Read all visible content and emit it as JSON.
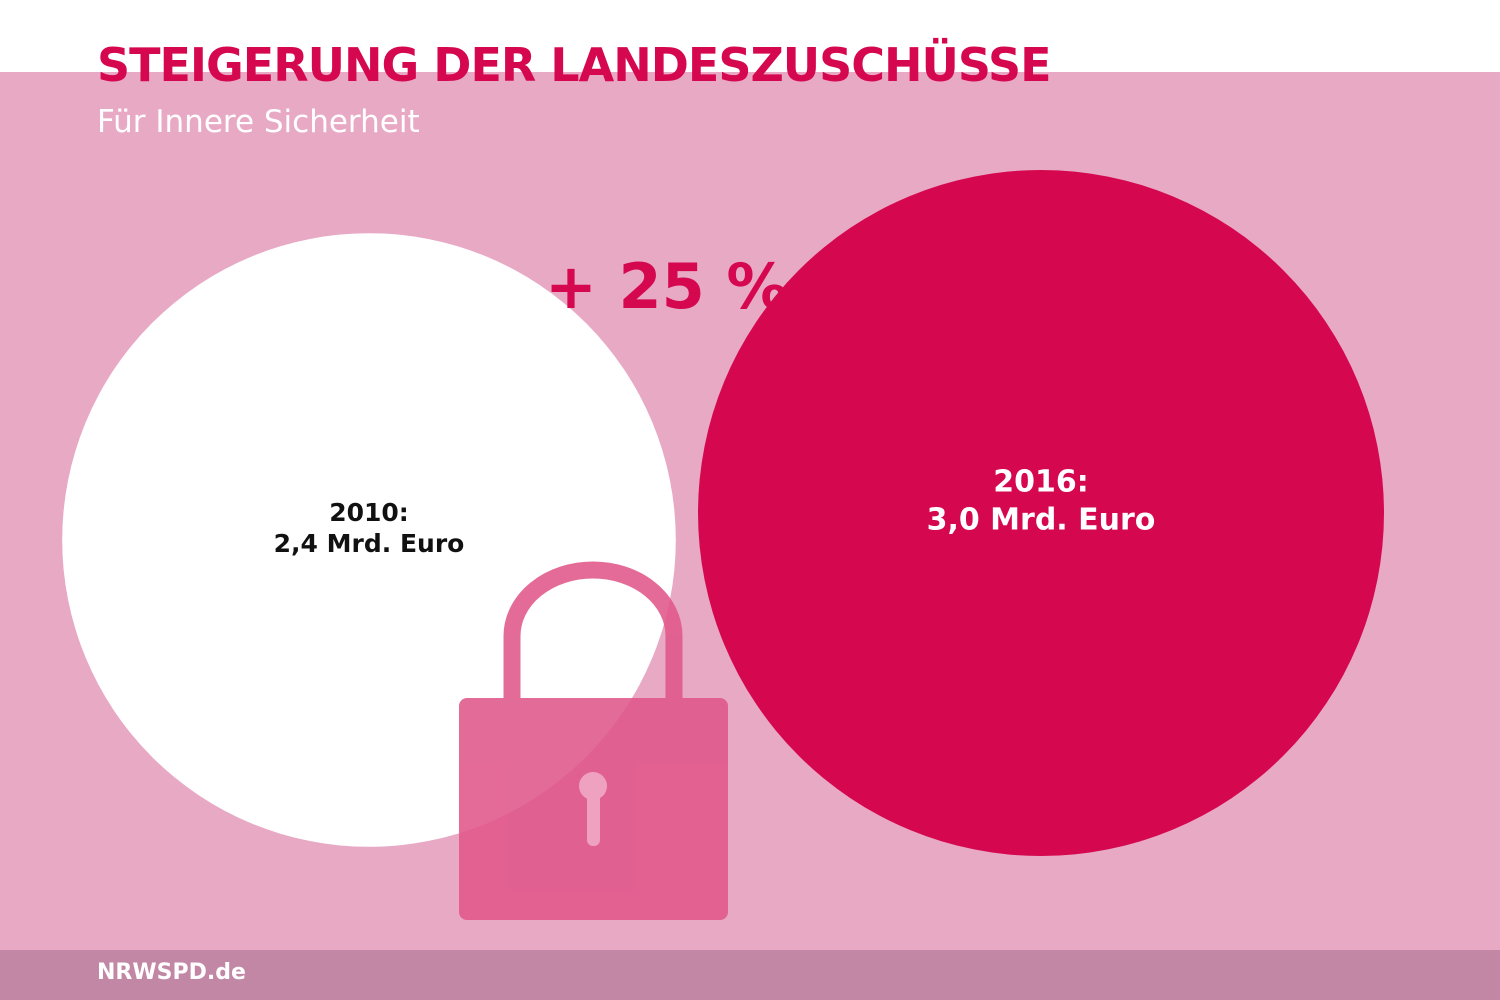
{
  "header": {
    "title": "STEIGERUNG DER LANDESZUSCHÜSSE",
    "subtitle": "Für Innere Sicherheit"
  },
  "growth_label": "+ 25 %",
  "footer": {
    "site": "NRWSPD.de"
  },
  "icon": "padlock-icon",
  "colors": {
    "accent": "#d5084f",
    "background_panel": "#e8a9c5",
    "footer_bar": "#c387a6",
    "circle_2010": "#ffffff",
    "circle_2016": "#d5084f",
    "padlock": "#e0578a"
  },
  "chart_data": {
    "type": "bubble",
    "title": "STEIGERUNG DER LANDESZUSCHÜSSE",
    "subtitle": "Für Innere Sicherheit",
    "unit": "Mrd. Euro",
    "change_label": "+ 25 %",
    "items": [
      {
        "year": "2010",
        "value": 2.4,
        "year_label": "2010:",
        "value_label": "2,4 Mrd. Euro",
        "color": "#ffffff"
      },
      {
        "year": "2016",
        "value": 3.0,
        "year_label": "2016:",
        "value_label": "3,0 Mrd. Euro",
        "color": "#d5084f"
      }
    ]
  }
}
